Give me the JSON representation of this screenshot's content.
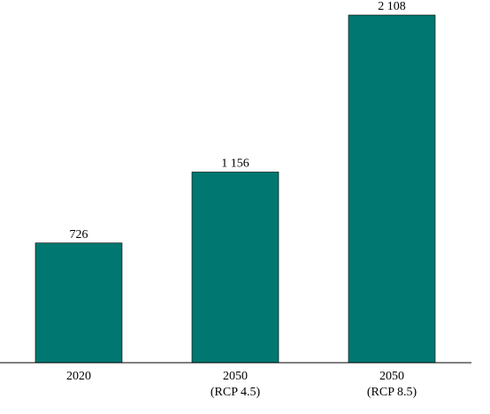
{
  "chart_data": {
    "type": "bar",
    "categories": [
      [
        "2020"
      ],
      [
        "2050",
        "(RCP 4.5)"
      ],
      [
        "2050",
        "(RCP 8.5)"
      ]
    ],
    "values": [
      726,
      1156,
      2108
    ],
    "value_labels": [
      "726",
      "1 156",
      "2 108"
    ],
    "color": "#007770"
  }
}
